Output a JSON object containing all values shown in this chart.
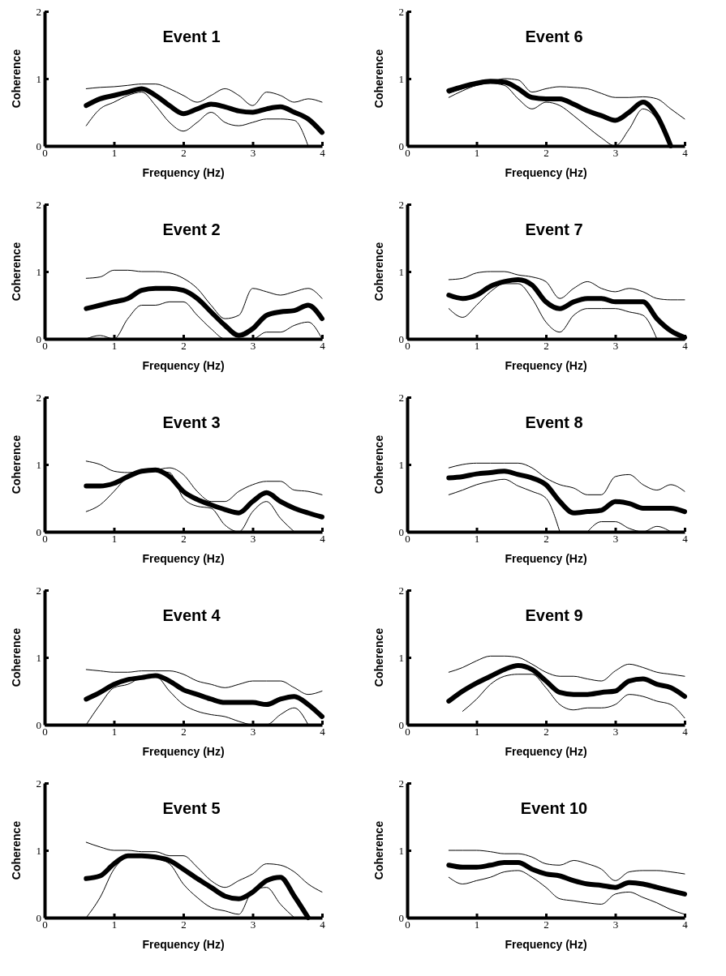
{
  "chart_data": [
    {
      "type": "line",
      "title": "Event 1",
      "xlabel": "Frequency (Hz)",
      "ylabel": "Coherence",
      "x": [
        0.6,
        0.8,
        1.0,
        1.2,
        1.4,
        1.6,
        1.8,
        2.0,
        2.2,
        2.4,
        2.6,
        2.8,
        3.0,
        3.2,
        3.4,
        3.6,
        3.8,
        4.0
      ],
      "xlim": [
        0,
        4
      ],
      "xticks": [
        0,
        1,
        2,
        3,
        4
      ],
      "ylim": [
        0,
        2
      ],
      "yticks": [
        0,
        1,
        2
      ],
      "series": [
        {
          "color": "#000000",
          "values": [
            0.6,
            0.7,
            0.75,
            0.8,
            0.85,
            0.75,
            0.6,
            0.48,
            0.55,
            0.62,
            0.58,
            0.52,
            0.5,
            0.55,
            0.58,
            0.5,
            0.4,
            0.2
          ]
        },
        {
          "color": "#000000",
          "values": [
            0.85,
            0.87,
            0.88,
            0.9,
            0.92,
            0.92,
            0.85,
            0.75,
            0.65,
            0.75,
            0.85,
            0.75,
            0.6,
            0.8,
            0.75,
            0.65,
            0.7,
            0.65
          ]
        },
        {
          "color": "#000000",
          "values": [
            0.3,
            0.55,
            0.65,
            0.75,
            0.8,
            0.6,
            0.35,
            0.22,
            0.35,
            0.5,
            0.35,
            0.3,
            0.35,
            0.4,
            0.4,
            0.38,
            0.0,
            null
          ]
        }
      ]
    },
    {
      "type": "line",
      "title": "Event 6",
      "xlabel": "Frequency (Hz)",
      "ylabel": "Coherence",
      "x": [
        0.6,
        0.8,
        1.0,
        1.2,
        1.4,
        1.6,
        1.8,
        2.0,
        2.2,
        2.4,
        2.6,
        2.8,
        3.0,
        3.2,
        3.4,
        3.6,
        3.8,
        4.0
      ],
      "xlim": [
        0,
        4
      ],
      "xticks": [
        0,
        1,
        2,
        3,
        4
      ],
      "ylim": [
        0,
        2
      ],
      "yticks": [
        0,
        1,
        2
      ],
      "series": [
        {
          "color": "#000000",
          "values": [
            0.82,
            0.88,
            0.93,
            0.96,
            0.95,
            0.85,
            0.72,
            0.7,
            0.7,
            0.62,
            0.52,
            0.45,
            0.38,
            0.5,
            0.65,
            0.45,
            0.0,
            null
          ]
        },
        {
          "color": "#000000",
          "values": [
            0.78,
            0.85,
            0.92,
            0.95,
            1.0,
            0.98,
            0.8,
            0.85,
            0.88,
            0.87,
            0.85,
            0.78,
            0.72,
            0.72,
            0.73,
            0.7,
            0.55,
            0.4
          ]
        },
        {
          "color": "#000000",
          "values": [
            0.72,
            0.82,
            0.9,
            0.93,
            0.9,
            0.7,
            0.55,
            0.65,
            0.6,
            0.45,
            0.28,
            0.12,
            0.0,
            0.25,
            0.55,
            0.4,
            0.0,
            null
          ]
        }
      ]
    },
    {
      "type": "line",
      "title": "Event 2",
      "xlabel": "Frequency (Hz)",
      "ylabel": "Coherence",
      "x": [
        0.6,
        0.8,
        1.0,
        1.2,
        1.4,
        1.6,
        1.8,
        2.0,
        2.2,
        2.4,
        2.6,
        2.8,
        3.0,
        3.2,
        3.4,
        3.6,
        3.8,
        4.0
      ],
      "xlim": [
        0,
        4
      ],
      "xticks": [
        0,
        1,
        2,
        3,
        4
      ],
      "ylim": [
        0,
        2
      ],
      "yticks": [
        0,
        1,
        2
      ],
      "series": [
        {
          "color": "#000000",
          "values": [
            0.45,
            0.5,
            0.55,
            0.6,
            0.72,
            0.75,
            0.75,
            0.72,
            0.6,
            0.4,
            0.2,
            0.05,
            0.15,
            0.35,
            0.4,
            0.42,
            0.5,
            0.3
          ]
        },
        {
          "color": "#000000",
          "values": [
            0.9,
            0.92,
            1.02,
            1.02,
            1.0,
            1.0,
            0.98,
            0.9,
            0.75,
            0.5,
            0.3,
            0.35,
            0.75,
            0.7,
            0.65,
            0.7,
            0.75,
            0.6
          ]
        },
        {
          "color": "#000000",
          "values": [
            0.0,
            0.05,
            0.0,
            0.3,
            0.5,
            0.5,
            0.55,
            0.55,
            0.35,
            0.15,
            0.0,
            0.0,
            0.0,
            0.1,
            0.1,
            0.2,
            0.25,
            0.0
          ]
        }
      ]
    },
    {
      "type": "line",
      "title": "Event 7",
      "xlabel": "Frequency (Hz)",
      "ylabel": "Coherence",
      "x": [
        0.6,
        0.8,
        1.0,
        1.2,
        1.4,
        1.6,
        1.8,
        2.0,
        2.2,
        2.4,
        2.6,
        2.8,
        3.0,
        3.2,
        3.4,
        3.6,
        3.8,
        4.0
      ],
      "xlim": [
        0,
        4
      ],
      "xticks": [
        0,
        1,
        2,
        3,
        4
      ],
      "ylim": [
        0,
        2
      ],
      "yticks": [
        0,
        1,
        2
      ],
      "series": [
        {
          "color": "#000000",
          "values": [
            0.65,
            0.6,
            0.65,
            0.78,
            0.85,
            0.88,
            0.8,
            0.55,
            0.45,
            0.55,
            0.6,
            0.6,
            0.55,
            0.55,
            0.55,
            0.3,
            0.12,
            0.02
          ]
        },
        {
          "color": "#000000",
          "values": [
            0.88,
            0.9,
            0.98,
            1.0,
            1.0,
            0.95,
            0.92,
            0.85,
            0.6,
            0.75,
            0.85,
            0.75,
            0.7,
            0.75,
            0.7,
            0.6,
            0.58,
            0.58
          ]
        },
        {
          "color": "#000000",
          "values": [
            0.45,
            0.32,
            0.5,
            0.7,
            0.82,
            0.82,
            0.6,
            0.25,
            0.1,
            0.35,
            0.45,
            0.45,
            0.45,
            0.4,
            0.35,
            0.0,
            null,
            null
          ]
        }
      ]
    },
    {
      "type": "line",
      "title": "Event 3",
      "xlabel": "Frequency (Hz)",
      "ylabel": "Coherence",
      "x": [
        0.6,
        0.8,
        1.0,
        1.2,
        1.4,
        1.6,
        1.8,
        2.0,
        2.2,
        2.4,
        2.6,
        2.8,
        3.0,
        3.2,
        3.4,
        3.6,
        3.8,
        4.0
      ],
      "xlim": [
        0,
        4
      ],
      "xticks": [
        0,
        1,
        2,
        3,
        4
      ],
      "ylim": [
        0,
        2
      ],
      "yticks": [
        0,
        1,
        2
      ],
      "series": [
        {
          "color": "#000000",
          "values": [
            0.68,
            0.68,
            0.72,
            0.82,
            0.9,
            0.92,
            0.82,
            0.6,
            0.48,
            0.4,
            0.33,
            0.28,
            0.45,
            0.58,
            0.45,
            0.35,
            0.28,
            0.22
          ]
        },
        {
          "color": "#000000",
          "values": [
            1.05,
            1.0,
            0.9,
            0.88,
            0.9,
            0.92,
            0.95,
            0.85,
            0.6,
            0.45,
            0.45,
            0.6,
            0.7,
            0.75,
            0.75,
            0.62,
            0.6,
            0.55
          ]
        },
        {
          "color": "#000000",
          "values": [
            0.3,
            0.4,
            0.6,
            0.82,
            0.9,
            0.9,
            0.88,
            0.5,
            0.38,
            0.35,
            0.1,
            0.0,
            0.3,
            0.45,
            0.2,
            0.0,
            null,
            null
          ]
        }
      ]
    },
    {
      "type": "line",
      "title": "Event 8",
      "xlabel": "Frequency (Hz)",
      "ylabel": "Coherence",
      "x": [
        0.6,
        0.8,
        1.0,
        1.2,
        1.4,
        1.6,
        1.8,
        2.0,
        2.2,
        2.4,
        2.6,
        2.8,
        3.0,
        3.2,
        3.4,
        3.6,
        3.8,
        4.0
      ],
      "xlim": [
        0,
        4
      ],
      "xticks": [
        0,
        1,
        2,
        3,
        4
      ],
      "ylim": [
        0,
        2
      ],
      "yticks": [
        0,
        1,
        2
      ],
      "series": [
        {
          "color": "#000000",
          "values": [
            0.8,
            0.82,
            0.86,
            0.88,
            0.9,
            0.85,
            0.8,
            0.7,
            0.45,
            0.28,
            0.3,
            0.32,
            0.45,
            0.42,
            0.35,
            0.35,
            0.35,
            0.3
          ]
        },
        {
          "color": "#000000",
          "values": [
            0.95,
            1.0,
            1.02,
            1.02,
            1.02,
            1.02,
            0.95,
            0.8,
            0.7,
            0.65,
            0.55,
            0.55,
            0.82,
            0.85,
            0.7,
            0.62,
            0.7,
            0.6
          ]
        },
        {
          "color": "#000000",
          "values": [
            0.55,
            0.62,
            0.7,
            0.75,
            0.78,
            0.68,
            0.6,
            0.5,
            0.0,
            null,
            0.0,
            0.15,
            0.15,
            0.05,
            0.0,
            0.08,
            0.0,
            null
          ]
        }
      ]
    },
    {
      "type": "line",
      "title": "Event 4",
      "xlabel": "Frequency (Hz)",
      "ylabel": "Coherence",
      "x": [
        0.6,
        0.8,
        1.0,
        1.2,
        1.4,
        1.6,
        1.8,
        2.0,
        2.2,
        2.4,
        2.6,
        2.8,
        3.0,
        3.2,
        3.4,
        3.6,
        3.8,
        4.0
      ],
      "xlim": [
        0,
        4
      ],
      "xticks": [
        0,
        1,
        2,
        3,
        4
      ],
      "ylim": [
        0,
        2
      ],
      "yticks": [
        0,
        1,
        2
      ],
      "series": [
        {
          "color": "#000000",
          "values": [
            0.38,
            0.48,
            0.6,
            0.67,
            0.7,
            0.73,
            0.65,
            0.52,
            0.45,
            0.38,
            0.33,
            0.33,
            0.33,
            0.3,
            0.38,
            0.42,
            0.3,
            0.12
          ]
        },
        {
          "color": "#000000",
          "values": [
            0.82,
            0.8,
            0.78,
            0.78,
            0.8,
            0.8,
            0.8,
            0.75,
            0.65,
            0.6,
            0.55,
            0.6,
            0.65,
            0.65,
            0.65,
            0.55,
            0.45,
            0.5
          ]
        },
        {
          "color": "#000000",
          "values": [
            0.0,
            0.3,
            0.55,
            0.6,
            0.7,
            0.72,
            0.5,
            0.3,
            0.2,
            0.15,
            0.12,
            0.05,
            0.0,
            0.0,
            0.15,
            0.25,
            0.0,
            null
          ]
        }
      ]
    },
    {
      "type": "line",
      "title": "Event 9",
      "xlabel": "Frequency (Hz)",
      "ylabel": "Coherence",
      "x": [
        0.6,
        0.8,
        1.0,
        1.2,
        1.4,
        1.6,
        1.8,
        2.0,
        2.2,
        2.4,
        2.6,
        2.8,
        3.0,
        3.2,
        3.4,
        3.6,
        3.8,
        4.0
      ],
      "xlim": [
        0,
        4
      ],
      "xticks": [
        0,
        1,
        2,
        3,
        4
      ],
      "ylim": [
        0,
        2
      ],
      "yticks": [
        0,
        1,
        2
      ],
      "series": [
        {
          "color": "#000000",
          "values": [
            0.35,
            0.5,
            0.62,
            0.72,
            0.82,
            0.88,
            0.82,
            0.65,
            0.48,
            0.45,
            0.45,
            0.48,
            0.5,
            0.65,
            0.68,
            0.6,
            0.55,
            0.42
          ]
        },
        {
          "color": "#000000",
          "values": [
            0.78,
            0.85,
            0.95,
            1.02,
            1.02,
            1.0,
            0.9,
            0.78,
            0.72,
            0.72,
            0.68,
            0.65,
            0.8,
            0.9,
            0.85,
            0.78,
            0.75,
            0.72
          ]
        },
        {
          "color": "#000000",
          "values": [
            null,
            0.2,
            0.38,
            0.6,
            0.72,
            0.75,
            0.75,
            0.55,
            0.3,
            0.22,
            0.25,
            0.25,
            0.3,
            0.45,
            0.42,
            0.35,
            0.3,
            0.1
          ]
        }
      ]
    },
    {
      "type": "line",
      "title": "Event 5",
      "xlabel": "Frequency (Hz)",
      "ylabel": "Coherence",
      "x": [
        0.6,
        0.8,
        1.0,
        1.2,
        1.4,
        1.6,
        1.8,
        2.0,
        2.2,
        2.4,
        2.6,
        2.8,
        3.0,
        3.2,
        3.4,
        3.6,
        3.8,
        4.0
      ],
      "xlim": [
        0,
        4
      ],
      "xticks": [
        0,
        1,
        2,
        3,
        4
      ],
      "ylim": [
        0,
        2
      ],
      "yticks": [
        0,
        1,
        2
      ],
      "series": [
        {
          "color": "#000000",
          "values": [
            0.58,
            0.62,
            0.8,
            0.92,
            0.92,
            0.9,
            0.85,
            0.72,
            0.58,
            0.45,
            0.32,
            0.28,
            0.38,
            0.55,
            0.6,
            0.32,
            0.0,
            null
          ]
        },
        {
          "color": "#000000",
          "values": [
            1.12,
            1.05,
            1.0,
            1.0,
            0.98,
            0.98,
            0.92,
            0.92,
            0.75,
            0.55,
            0.45,
            0.55,
            0.65,
            0.8,
            0.78,
            0.68,
            0.5,
            0.38
          ]
        },
        {
          "color": "#000000",
          "values": [
            0.0,
            0.3,
            0.72,
            0.9,
            0.92,
            0.88,
            0.8,
            0.5,
            0.3,
            0.15,
            0.1,
            0.05,
            0.4,
            0.45,
            0.2,
            0.0,
            null,
            null
          ]
        }
      ]
    },
    {
      "type": "line",
      "title": "Event 10",
      "xlabel": "Frequency (Hz)",
      "ylabel": "Coherence",
      "x": [
        0.6,
        0.8,
        1.0,
        1.2,
        1.4,
        1.6,
        1.8,
        2.0,
        2.2,
        2.4,
        2.6,
        2.8,
        3.0,
        3.2,
        3.4,
        3.6,
        3.8,
        4.0
      ],
      "xlim": [
        0,
        4
      ],
      "xticks": [
        0,
        1,
        2,
        3,
        4
      ],
      "ylim": [
        0,
        2
      ],
      "yticks": [
        0,
        1,
        2
      ],
      "series": [
        {
          "color": "#000000",
          "values": [
            0.78,
            0.75,
            0.75,
            0.78,
            0.82,
            0.82,
            0.72,
            0.65,
            0.62,
            0.55,
            0.5,
            0.48,
            0.45,
            0.52,
            0.5,
            0.45,
            0.4,
            0.35
          ]
        },
        {
          "color": "#000000",
          "values": [
            1.0,
            1.0,
            1.0,
            0.98,
            0.95,
            0.95,
            0.9,
            0.8,
            0.78,
            0.85,
            0.8,
            0.72,
            0.55,
            0.68,
            0.7,
            0.7,
            0.68,
            0.65
          ]
        },
        {
          "color": "#000000",
          "values": [
            0.6,
            0.5,
            0.55,
            0.6,
            0.68,
            0.7,
            0.6,
            0.45,
            0.28,
            0.25,
            0.22,
            0.2,
            0.35,
            0.38,
            0.3,
            0.22,
            0.12,
            0.05
          ]
        }
      ]
    }
  ]
}
